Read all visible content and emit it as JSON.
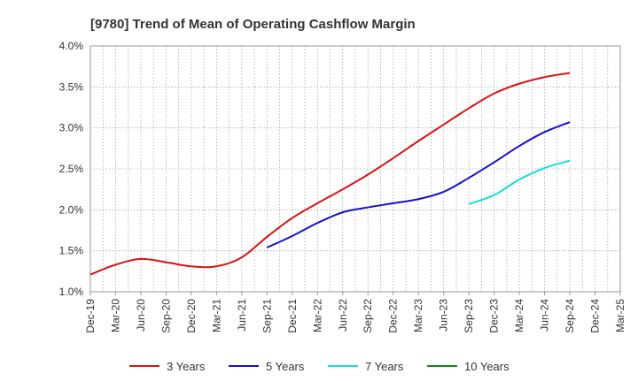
{
  "chart_data": {
    "type": "line",
    "title": "[9780]  Trend of Mean of Operating Cashflow Margin",
    "xlabel": "",
    "ylabel": "",
    "ylim": [
      1.0,
      4.0
    ],
    "yticks": [
      "1.0%",
      "1.5%",
      "2.0%",
      "2.5%",
      "3.0%",
      "3.5%",
      "4.0%"
    ],
    "ytick_values": [
      1.0,
      1.5,
      2.0,
      2.5,
      3.0,
      3.5,
      4.0
    ],
    "categories": [
      "Dec-19",
      "Mar-20",
      "Jun-20",
      "Sep-20",
      "Dec-20",
      "Mar-21",
      "Jun-21",
      "Sep-21",
      "Dec-21",
      "Mar-22",
      "Jun-22",
      "Sep-22",
      "Dec-22",
      "Mar-23",
      "Jun-23",
      "Sep-23",
      "Dec-23",
      "Mar-24",
      "Jun-24",
      "Sep-24",
      "Dec-24",
      "Mar-25"
    ],
    "grid": true,
    "legend_position": "bottom",
    "series": [
      {
        "name": "3 Years",
        "color": "#dd1111",
        "values": [
          1.21,
          1.33,
          1.4,
          1.36,
          1.31,
          1.31,
          1.42,
          1.67,
          1.9,
          2.08,
          2.25,
          2.43,
          2.63,
          2.84,
          3.04,
          3.24,
          3.42,
          3.54,
          3.62,
          3.67,
          null,
          null
        ]
      },
      {
        "name": "5 Years",
        "color": "#1111cc",
        "values": [
          null,
          null,
          null,
          null,
          null,
          null,
          null,
          1.54,
          1.68,
          1.84,
          1.97,
          2.03,
          2.08,
          2.13,
          2.22,
          2.39,
          2.58,
          2.78,
          2.95,
          3.07,
          null,
          null
        ]
      },
      {
        "name": "7 Years",
        "color": "#11dddd",
        "values": [
          null,
          null,
          null,
          null,
          null,
          null,
          null,
          null,
          null,
          null,
          null,
          null,
          null,
          null,
          null,
          2.07,
          2.18,
          2.37,
          2.51,
          2.6,
          null,
          null
        ]
      },
      {
        "name": "10 Years",
        "color": "#118811",
        "values": [
          null,
          null,
          null,
          null,
          null,
          null,
          null,
          null,
          null,
          null,
          null,
          null,
          null,
          null,
          null,
          null,
          null,
          null,
          null,
          null,
          null,
          null
        ]
      }
    ]
  }
}
